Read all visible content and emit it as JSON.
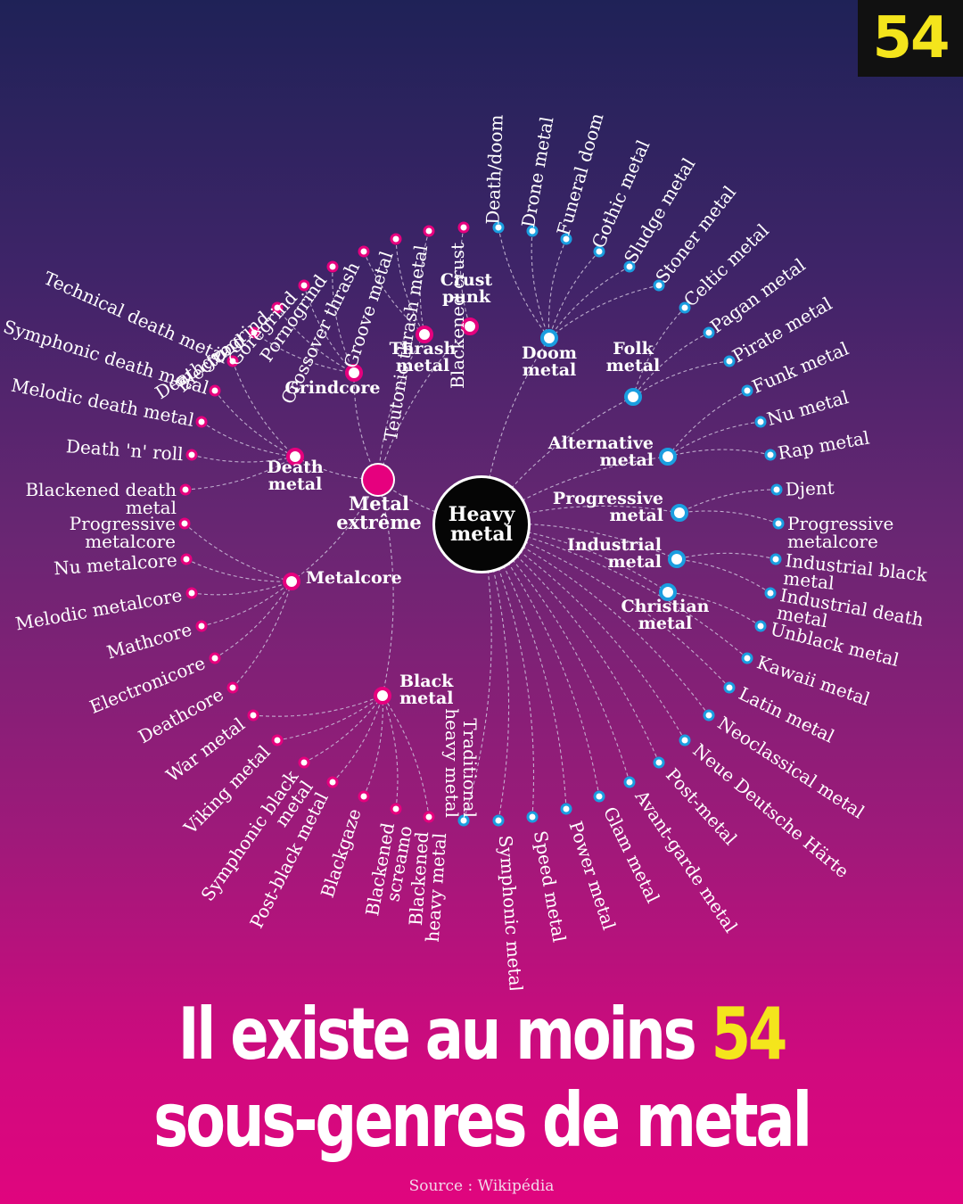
{
  "badge": "54",
  "headline": {
    "prefix": "Il existe au moins",
    "number": "54",
    "suffix": "sous-genres de metal"
  },
  "source": "Source : Wikipédia",
  "colors": {
    "extreme": "#e6007e",
    "other": "#1a9ee0",
    "link": "#cfc3dd"
  },
  "root": {
    "label": [
      "Heavy",
      "metal"
    ]
  },
  "hubs": {
    "extreme": {
      "label": [
        "Metal",
        "extrême"
      ],
      "branch": "extreme"
    },
    "thrash": {
      "label": [
        "Thrash",
        "metal"
      ],
      "branch": "extreme"
    },
    "crust": {
      "label": [
        "Crust",
        "punk"
      ],
      "branch": "extreme"
    },
    "grindcore": {
      "label": [
        "Grindcore"
      ],
      "branch": "extreme"
    },
    "death": {
      "label": [
        "Death",
        "metal"
      ],
      "branch": "extreme"
    },
    "metalcore": {
      "label": [
        "Metalcore"
      ],
      "branch": "extreme"
    },
    "black": {
      "label": [
        "Black",
        "metal"
      ],
      "branch": "extreme"
    },
    "doom": {
      "label": [
        "Doom",
        "metal"
      ],
      "branch": "other"
    },
    "folk": {
      "label": [
        "Folk",
        "metal"
      ],
      "branch": "other"
    },
    "alternative": {
      "label": [
        "Alternative",
        "metal"
      ],
      "branch": "other"
    },
    "progressive": {
      "label": [
        "Progressive",
        "metal"
      ],
      "branch": "other"
    },
    "industrial": {
      "label": [
        "Industrial",
        "metal"
      ],
      "branch": "other"
    },
    "christian": {
      "label": [
        "Christian",
        "metal"
      ],
      "branch": "other"
    }
  },
  "leaves": [
    {
      "label": [
        "Blackened crust"
      ],
      "parent": "crust"
    },
    {
      "label": [
        "Teutonic thrash metal"
      ],
      "parent": "thrash"
    },
    {
      "label": [
        "Groove metal"
      ],
      "parent": "thrash"
    },
    {
      "label": [
        "Crossover thrash"
      ],
      "parent": "thrash"
    },
    {
      "label": [
        "Pornogrind"
      ],
      "parent": "grindcore"
    },
    {
      "label": [
        "Goregrind"
      ],
      "parent": "grindcore"
    },
    {
      "label": [
        "Electrogrind"
      ],
      "parent": "grindcore"
    },
    {
      "label": [
        "Deathgrind"
      ],
      "parent": "grindcore"
    },
    {
      "label": [
        "Technical death metal"
      ],
      "parent": "death"
    },
    {
      "label": [
        "Symphonic death metal"
      ],
      "parent": "death"
    },
    {
      "label": [
        "Melodic death metal"
      ],
      "parent": "death"
    },
    {
      "label": [
        "Death 'n' roll"
      ],
      "parent": "death"
    },
    {
      "label": [
        "Blackened death",
        "metal"
      ],
      "parent": "death"
    },
    {
      "label": [
        "Progressive",
        "metalcore"
      ],
      "parent": "metalcore"
    },
    {
      "label": [
        "Nu metalcore"
      ],
      "parent": "metalcore"
    },
    {
      "label": [
        "Melodic metalcore"
      ],
      "parent": "metalcore"
    },
    {
      "label": [
        "Mathcore"
      ],
      "parent": "metalcore"
    },
    {
      "label": [
        "Electronicore"
      ],
      "parent": "metalcore"
    },
    {
      "label": [
        "Deathcore"
      ],
      "parent": "metalcore"
    },
    {
      "label": [
        "War metal"
      ],
      "parent": "black"
    },
    {
      "label": [
        "Viking metal"
      ],
      "parent": "black"
    },
    {
      "label": [
        "Symphonic black",
        "metal"
      ],
      "parent": "black"
    },
    {
      "label": [
        "Post-black metal"
      ],
      "parent": "black"
    },
    {
      "label": [
        "Blackgaze"
      ],
      "parent": "black"
    },
    {
      "label": [
        "Blackened",
        "screamo"
      ],
      "parent": "black"
    },
    {
      "label": [
        "Blackened",
        "heavy metal"
      ],
      "parent": "black"
    },
    {
      "label": [
        "Traditional",
        "heavy metal"
      ],
      "parent": "root"
    },
    {
      "label": [
        "Symphonic metal"
      ],
      "parent": "root"
    },
    {
      "label": [
        "Speed metal"
      ],
      "parent": "root"
    },
    {
      "label": [
        "Power metal"
      ],
      "parent": "root"
    },
    {
      "label": [
        "Glam metal"
      ],
      "parent": "root"
    },
    {
      "label": [
        "Avant-garde metal"
      ],
      "parent": "root"
    },
    {
      "label": [
        "Post-metal"
      ],
      "parent": "root"
    },
    {
      "label": [
        "Neue Deutsche Härte"
      ],
      "parent": "root"
    },
    {
      "label": [
        "Neoclassical metal"
      ],
      "parent": "root"
    },
    {
      "label": [
        "Latin metal"
      ],
      "parent": "root"
    },
    {
      "label": [
        "Kawaii metal"
      ],
      "parent": "root"
    },
    {
      "label": [
        "Unblack metal"
      ],
      "parent": "christian"
    },
    {
      "label": [
        "Industrial death",
        "metal"
      ],
      "parent": "industrial"
    },
    {
      "label": [
        "Industrial black",
        "metal"
      ],
      "parent": "industrial"
    },
    {
      "label": [
        "Progressive",
        "metalcore"
      ],
      "parent": "progressive"
    },
    {
      "label": [
        "Djent"
      ],
      "parent": "progressive"
    },
    {
      "label": [
        "Rap metal"
      ],
      "parent": "alternative"
    },
    {
      "label": [
        "Nu metal"
      ],
      "parent": "alternative"
    },
    {
      "label": [
        "Funk metal"
      ],
      "parent": "alternative"
    },
    {
      "label": [
        "Pirate metal"
      ],
      "parent": "folk"
    },
    {
      "label": [
        "Pagan metal"
      ],
      "parent": "folk"
    },
    {
      "label": [
        "Celtic metal"
      ],
      "parent": "folk"
    },
    {
      "label": [
        "Stoner metal"
      ],
      "parent": "doom"
    },
    {
      "label": [
        "Sludge metal"
      ],
      "parent": "doom"
    },
    {
      "label": [
        "Gothic metal"
      ],
      "parent": "doom"
    },
    {
      "label": [
        "Funeral doom"
      ],
      "parent": "doom"
    },
    {
      "label": [
        "Drone metal"
      ],
      "parent": "doom"
    },
    {
      "label": [
        "Death/doom"
      ],
      "parent": "doom"
    }
  ]
}
